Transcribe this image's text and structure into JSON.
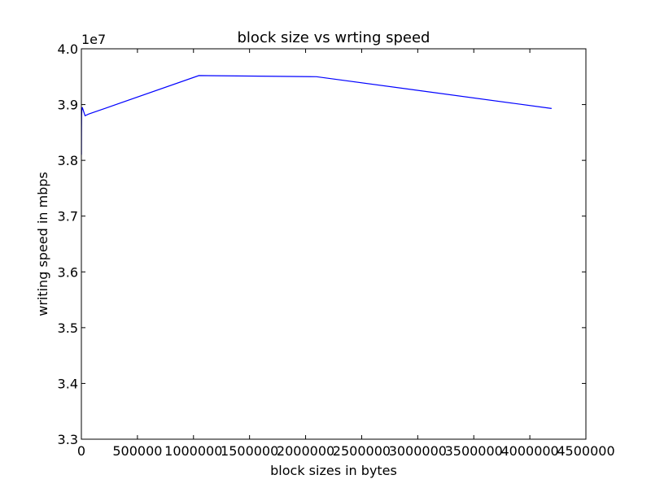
{
  "chart_data": {
    "type": "line",
    "title": "block size vs  wrting speed",
    "xlabel": "block sizes in bytes",
    "ylabel": "writing speed in mbps",
    "y_offset_label": "1e7",
    "xlim": [
      0,
      4500000
    ],
    "ylim": [
      33000000,
      40000000
    ],
    "x_ticks": [
      0,
      500000,
      1000000,
      1500000,
      2000000,
      2500000,
      3000000,
      3500000,
      4000000,
      4500000
    ],
    "x_tick_labels": [
      "0",
      "500000",
      "1000000",
      "1500000",
      "2000000",
      "2500000",
      "3000000",
      "3500000",
      "4000000",
      "4500000"
    ],
    "y_ticks": [
      33000000,
      34000000,
      35000000,
      36000000,
      37000000,
      38000000,
      39000000,
      40000000
    ],
    "y_tick_labels": [
      "3.3",
      "3.4",
      "3.5",
      "3.6",
      "3.7",
      "3.8",
      "3.9",
      "4.0"
    ],
    "grid": false,
    "series": [
      {
        "color": "#0000ff",
        "x": [
          512,
          1024,
          2048,
          4096,
          8192,
          16384,
          32768,
          65536,
          1048576,
          2097152,
          4194304
        ],
        "y": [
          38100000,
          38500000,
          38800000,
          38900000,
          38950000,
          38900000,
          38800000,
          38830000,
          39520000,
          39500000,
          38930000
        ]
      }
    ]
  }
}
